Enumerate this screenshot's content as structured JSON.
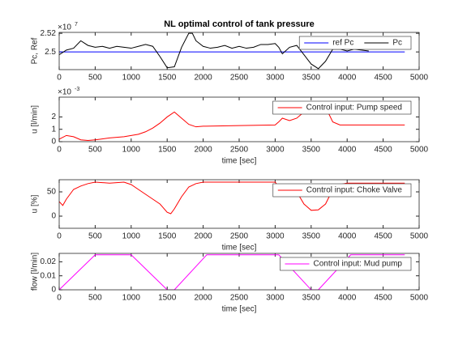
{
  "chart_data": [
    {
      "type": "line",
      "title": "NL optimal control of tank pressure",
      "ylabel": "Pc, Ref",
      "y_multiplier": "×10",
      "y_exponent": "7",
      "xlim": [
        0,
        5000
      ],
      "xticks": [
        0,
        500,
        1000,
        1500,
        2000,
        2500,
        3000,
        3500,
        4000,
        4500,
        5000
      ],
      "ylim": [
        2.481,
        2.521
      ],
      "yticks": [
        2.5,
        2.52
      ],
      "legend": "northeast",
      "legend_layout": "horizontal",
      "series": [
        {
          "name": "ref Pc",
          "color": "#0000ff",
          "x": [
            0,
            4800
          ],
          "values": [
            2.5,
            2.5
          ]
        },
        {
          "name": "Pc",
          "color": "#000000",
          "x": [
            0,
            100,
            200,
            300,
            400,
            500,
            600,
            700,
            800,
            900,
            1000,
            1100,
            1200,
            1300,
            1400,
            1500,
            1600,
            1700,
            1800,
            1850,
            1900,
            2000,
            2100,
            2200,
            2300,
            2400,
            2500,
            2600,
            2700,
            2800,
            2900,
            3000,
            3050,
            3100,
            3200,
            3300,
            3400,
            3500,
            3600,
            3700,
            3800,
            3900,
            4000,
            4100,
            4200,
            4300
          ],
          "values": [
            2.497,
            2.502,
            2.504,
            2.512,
            2.507,
            2.505,
            2.506,
            2.504,
            2.506,
            2.505,
            2.504,
            2.506,
            2.508,
            2.506,
            2.495,
            2.483,
            2.484,
            2.505,
            2.52,
            2.52,
            2.512,
            2.506,
            2.504,
            2.505,
            2.507,
            2.504,
            2.506,
            2.504,
            2.505,
            2.508,
            2.508,
            2.509,
            2.505,
            2.498,
            2.505,
            2.507,
            2.497,
            2.487,
            2.482,
            2.49,
            2.503,
            2.503,
            2.501,
            2.503,
            2.502,
            2.501
          ]
        }
      ]
    },
    {
      "type": "line",
      "ylabel": "u [l/min]",
      "xlabel": "time [sec]",
      "y_multiplier": "×10",
      "y_exponent": "-3",
      "xlim": [
        0,
        5000
      ],
      "xticks": [
        0,
        500,
        1000,
        1500,
        2000,
        2500,
        3000,
        3500,
        4000,
        4500,
        5000
      ],
      "ylim": [
        0,
        3.6
      ],
      "yticks": [
        0,
        1,
        2
      ],
      "legend": "northeast",
      "series": [
        {
          "name": "Control input: Pump speed",
          "color": "#ff0000",
          "x": [
            0,
            100,
            200,
            300,
            400,
            500,
            700,
            900,
            1100,
            1200,
            1300,
            1400,
            1500,
            1600,
            1700,
            1800,
            1900,
            2000,
            2500,
            3000,
            3050,
            3100,
            3200,
            3300,
            3400,
            3500,
            3600,
            3700,
            3800,
            3900,
            4000,
            4800
          ],
          "values": [
            0.2,
            0.5,
            0.4,
            0.15,
            0.1,
            0.15,
            0.3,
            0.4,
            0.6,
            0.8,
            1.1,
            1.5,
            2.0,
            2.4,
            1.9,
            1.4,
            1.2,
            1.25,
            1.3,
            1.35,
            1.6,
            1.9,
            1.7,
            1.9,
            2.4,
            2.9,
            3.1,
            2.8,
            1.6,
            1.35,
            1.35,
            1.35
          ]
        }
      ]
    },
    {
      "type": "line",
      "ylabel": "u [%]",
      "xlabel": "time [sec]",
      "xlim": [
        0,
        5000
      ],
      "xticks": [
        0,
        500,
        1000,
        1500,
        2000,
        2500,
        3000,
        3500,
        4000,
        4500,
        5000
      ],
      "ylim": [
        -25,
        75
      ],
      "yticks": [
        0,
        50
      ],
      "legend": "northeast",
      "series": [
        {
          "name": "Control input: Choke Valve",
          "color": "#ff0000",
          "x": [
            0,
            50,
            100,
            200,
            300,
            400,
            500,
            700,
            900,
            1000,
            1100,
            1200,
            1300,
            1400,
            1500,
            1550,
            1600,
            1700,
            1800,
            1900,
            2000,
            2500,
            3000,
            3050,
            3100,
            3200,
            3300,
            3400,
            3500,
            3600,
            3700,
            3800,
            3900,
            4000,
            4800
          ],
          "values": [
            30,
            22,
            35,
            55,
            62,
            67,
            70,
            68,
            70,
            65,
            55,
            45,
            35,
            25,
            8,
            5,
            15,
            40,
            60,
            67,
            70,
            70,
            70,
            60,
            45,
            60,
            50,
            25,
            12,
            13,
            25,
            55,
            65,
            68,
            68
          ]
        }
      ]
    },
    {
      "type": "line",
      "ylabel": "flow [l/min]",
      "xlabel": "time [sec]",
      "xlim": [
        0,
        5000
      ],
      "xticks": [
        0,
        500,
        1000,
        1500,
        2000,
        2500,
        3000,
        3500,
        4000,
        4500,
        5000
      ],
      "ylim": [
        0,
        0.026
      ],
      "yticks": [
        0,
        0.01,
        0.02
      ],
      "legend": "northeast",
      "series": [
        {
          "name": "Control input: Mud pump",
          "color": "#ff00ff",
          "x": [
            0,
            500,
            1000,
            1500,
            1600,
            2050,
            3050,
            3500,
            3600,
            4050,
            4800
          ],
          "values": [
            0,
            0.025,
            0.025,
            0,
            0,
            0.025,
            0.025,
            0,
            0,
            0.025,
            0.025
          ]
        }
      ]
    }
  ]
}
